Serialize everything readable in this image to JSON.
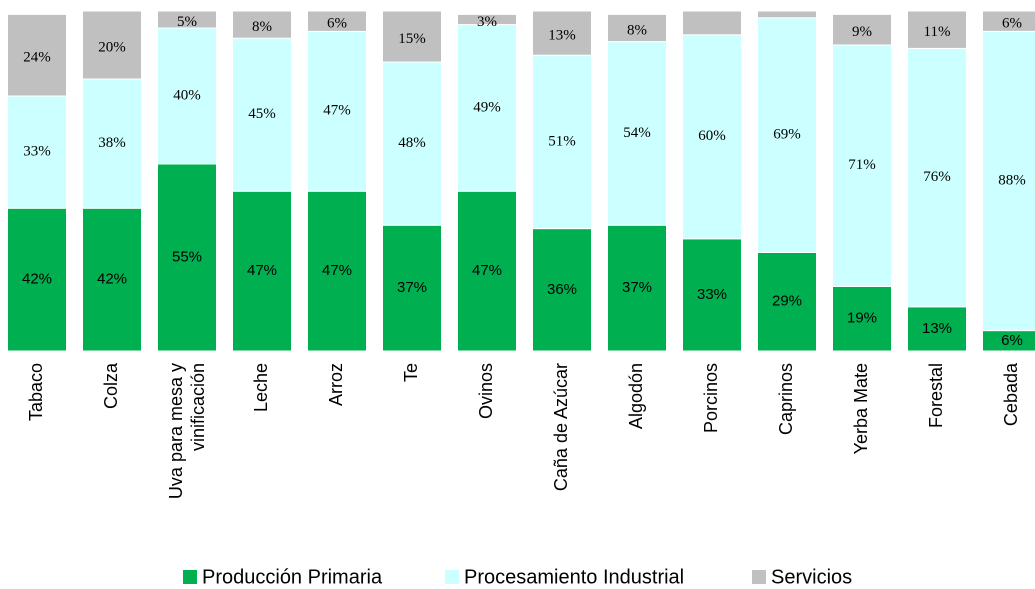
{
  "chart_data": {
    "type": "stacked_bar",
    "categories": [
      "Tabaco",
      "Colza",
      "Uva para mesa y vinificación",
      "Leche",
      "Arroz",
      "Te",
      "Ovinos",
      "Caña de Azúcar",
      "Algodón",
      "Porcinos",
      "Caprinos",
      "Yerba Mate",
      "Forestal",
      "Cebada"
    ],
    "ylim": [
      0,
      100
    ],
    "series": [
      {
        "name": "Producción Primaria",
        "color": "#00b050",
        "values": [
          42,
          42,
          55,
          47,
          47,
          37,
          47,
          36,
          37,
          33,
          29,
          19,
          13,
          6
        ],
        "value_labels": [
          "42%",
          "42%",
          "55%",
          "47%",
          "47%",
          "37%",
          "47%",
          "36%",
          "37%",
          "33%",
          "29%",
          "19%",
          "13%",
          "6%"
        ]
      },
      {
        "name": "Procesamiento Industrial",
        "color": "#ccffff",
        "values": [
          33,
          38,
          40,
          45,
          47,
          48,
          49,
          51,
          54,
          60,
          69,
          71,
          76,
          88
        ],
        "value_labels": [
          "33%",
          "38%",
          "40%",
          "45%",
          "47%",
          "48%",
          "49%",
          "51%",
          "54%",
          "60%",
          "69%",
          "71%",
          "76%",
          "88%"
        ]
      },
      {
        "name": "Servicios",
        "color": "#c0c0c0",
        "values": [
          24,
          20,
          5,
          8,
          6,
          15,
          3,
          13,
          8,
          7,
          2,
          9,
          11,
          6
        ],
        "value_labels": [
          "24%",
          "20%",
          "5%",
          "8%",
          "6%",
          "15%",
          "3%",
          "13%",
          "8%",
          null,
          null,
          "9%",
          "11%",
          "6%"
        ]
      }
    ]
  }
}
